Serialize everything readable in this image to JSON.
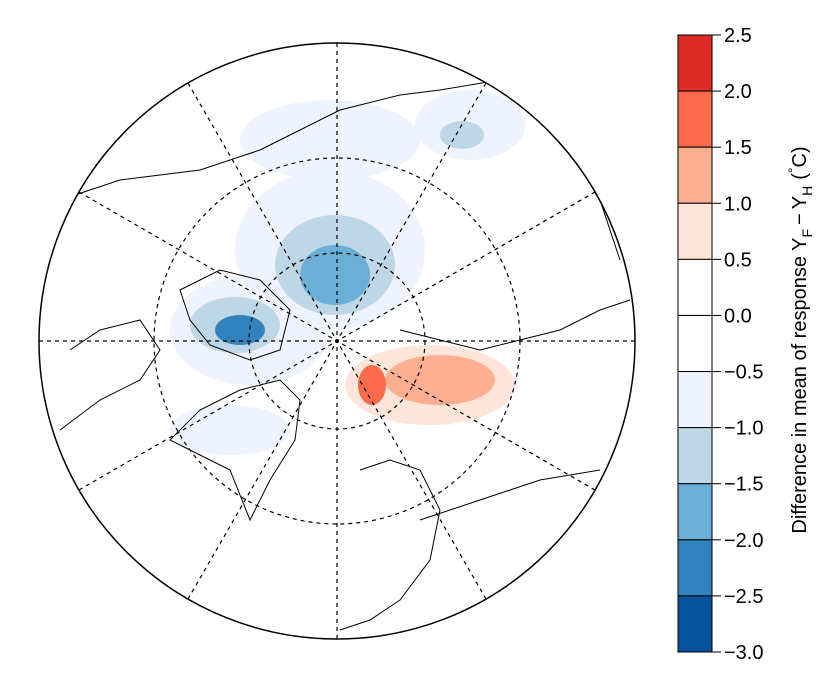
{
  "colorbar": {
    "levels": [
      2.5,
      {
        "value": 2.0,
        "label": "2.0"
      },
      1.5,
      {
        "value": 1.0,
        "label": "1.0"
      },
      0.5,
      {
        "value": 0.0,
        "label": "0.0"
      },
      {
        "value": -0.5,
        "label": "−0.5"
      },
      {
        "value": -1.0,
        "label": "−1.0"
      },
      {
        "value": -1.5,
        "label": "−1.5"
      },
      {
        "value": -2.0,
        "label": "−2.0"
      },
      {
        "value": -2.5,
        "label": "−2.5"
      },
      {
        "value": -3.0,
        "label": "−3.0"
      }
    ],
    "colors": [
      "#de2d26",
      "#fb6a4a",
      "#fcae91",
      "#fee5d9",
      "#ffffff",
      "#ffffff",
      "#eff3ff",
      "#bdd7e7",
      "#6baed6",
      "#3182bd",
      "#08519c"
    ],
    "label": {
      "text": "Difference in mean of response",
      "var1": "Y",
      "sub1": "F",
      "minus": "−",
      "var2": "Y",
      "sub2": "H",
      "unit_open": "(",
      "degree": "°",
      "unit_close": "C)"
    }
  }
}
